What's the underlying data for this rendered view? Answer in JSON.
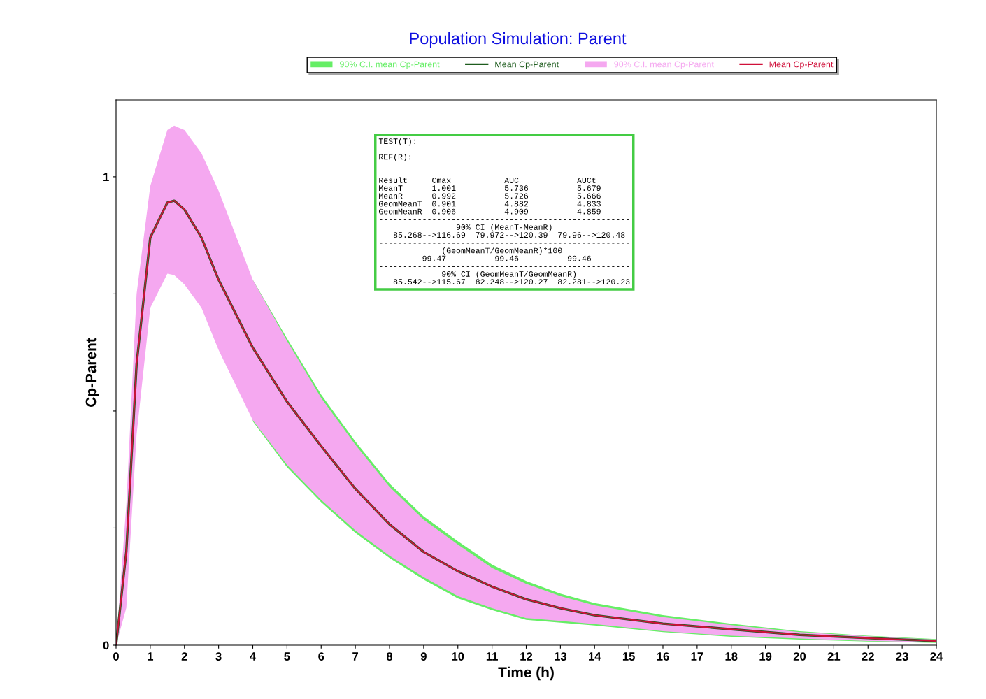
{
  "chart_data": {
    "type": "line",
    "title": "Population Simulation: Parent",
    "xlabel": "Time (h)",
    "ylabel": "Cp-Parent",
    "x": [
      0,
      0.3,
      0.6,
      1,
      1.5,
      1.7,
      2,
      2.5,
      3,
      4,
      5,
      6,
      7,
      8,
      9,
      10,
      11,
      12,
      13,
      14,
      16,
      18,
      20,
      22,
      24
    ],
    "series": [
      {
        "name": "Mean Cp-Parent",
        "color": "#1e5c1e",
        "colors": [
          "#66ee66",
          "#66ee66",
          "#66ee66",
          "#66ee66",
          "#66ee66",
          "#66ee66",
          "#66ee66",
          "#66ee66",
          "#66ee66",
          "#66ee66",
          "#66ee66",
          "#66ee66",
          "#66ee66",
          "#66ee66",
          "#66ee66",
          "#66ee66",
          "#66ee66",
          "#66ee66",
          "#66ee66",
          "#66ee66",
          "#66ee66",
          "#66ee66",
          "#66ee66",
          "#66ee66",
          "#66ee66"
        ],
        "values": [
          0,
          0.2,
          0.6,
          0.87,
          0.945,
          0.949,
          0.93,
          0.87,
          0.78,
          0.635,
          0.52,
          0.425,
          0.334,
          0.258,
          0.199,
          0.158,
          0.125,
          0.098,
          0.079,
          0.064,
          0.046,
          0.034,
          0.022,
          0.015,
          0.009
        ],
        "lower": [
          null,
          null,
          null,
          null,
          null,
          null,
          null,
          null,
          null,
          0.478,
          0.38,
          0.305,
          0.24,
          0.186,
          0.14,
          0.1,
          0.075,
          0.054,
          0.048,
          0.042,
          0.028,
          0.018,
          0.012,
          0.008,
          0.005
        ],
        "upper": [
          null,
          null,
          null,
          null,
          null,
          null,
          null,
          null,
          null,
          0.78,
          0.655,
          0.535,
          0.435,
          0.345,
          0.275,
          0.222,
          0.172,
          0.137,
          0.11,
          0.09,
          0.064,
          0.046,
          0.03,
          0.02,
          0.013
        ]
      },
      {
        "name": "Mean Cp-Parent",
        "color": "#d0103a",
        "colors": [
          "#f5a8f0",
          "#f5a8f0",
          "#f5a8f0",
          "#f5a8f0",
          "#f5a8f0",
          "#f5a8f0",
          "#f5a8f0",
          "#f5a8f0",
          "#f5a8f0",
          "#f5a8f0",
          "#f5a8f0",
          "#f5a8f0",
          "#f5a8f0",
          "#f5a8f0",
          "#f5a8f0",
          "#f5a8f0",
          "#f5a8f0",
          "#f5a8f0",
          "#f5a8f0",
          "#f5a8f0",
          "#f5a8f0",
          "#f5a8f0",
          "#f5a8f0",
          "#f5a8f0",
          "#f5a8f0"
        ],
        "values": [
          0,
          0.2,
          0.6,
          0.87,
          0.945,
          0.949,
          0.93,
          0.87,
          0.78,
          0.635,
          0.52,
          0.425,
          0.334,
          0.258,
          0.199,
          0.158,
          0.125,
          0.098,
          0.079,
          0.064,
          0.046,
          0.034,
          0.022,
          0.015,
          0.009
        ],
        "lower": [
          0,
          0.08,
          0.45,
          0.72,
          0.793,
          0.79,
          0.77,
          0.72,
          0.63,
          0.48,
          0.385,
          0.31,
          0.245,
          0.191,
          0.145,
          0.105,
          0.079,
          0.058,
          0.052,
          0.045,
          0.03,
          0.02,
          0.014,
          0.009,
          0.006
        ],
        "upper": [
          0,
          0.3,
          0.75,
          0.98,
          1.1,
          1.109,
          1.1,
          1.05,
          0.97,
          0.78,
          0.65,
          0.528,
          0.428,
          0.338,
          0.268,
          0.215,
          0.165,
          0.131,
          0.105,
          0.085,
          0.06,
          0.043,
          0.028,
          0.019,
          0.012
        ]
      }
    ],
    "xlim": [
      0,
      24
    ],
    "xticks": [
      0,
      1,
      2,
      3,
      4,
      5,
      6,
      7,
      8,
      9,
      10,
      11,
      12,
      13,
      14,
      15,
      16,
      17,
      18,
      19,
      20,
      21,
      22,
      23,
      24
    ],
    "ylim": [
      0,
      1.164
    ],
    "yticks": [
      0,
      {
        "value": 0.25,
        "label": null
      },
      {
        "value": 0.5,
        "label": null
      },
      {
        "value": 0.75,
        "label": null
      },
      1
    ],
    "grid": false,
    "legend": "top",
    "annotations": [
      "90% C.I. mean Cp-Parent",
      "90% C.I. mean Cp-Parent",
      "TEST(T):\n\nREF(R):\n\n\nResult     Cmax           AUC            AUCt\nMeanT      1.001          5.736          5.679\nMeanR      0.992          5.726          5.666\nGeomMeanT  0.901          4.882          4.833\nGeomMeanR  0.906          4.909          4.859\n----------------------------------------------------\n                90% CI (MeanT-MeanR)\n   85.268-->116.69  79.972-->120.39  79.96-->120.48\n----------------------------------------------------\n             (GeomMeanT/GeomMeanR)*100\n         99.47          99.46          99.46\n----------------------------------------------------\n             90% CI (GeomMeanT/GeomMeanR)\n   85.542-->115.67  82.248-->120.27  82.281-->120.23"
    ]
  }
}
